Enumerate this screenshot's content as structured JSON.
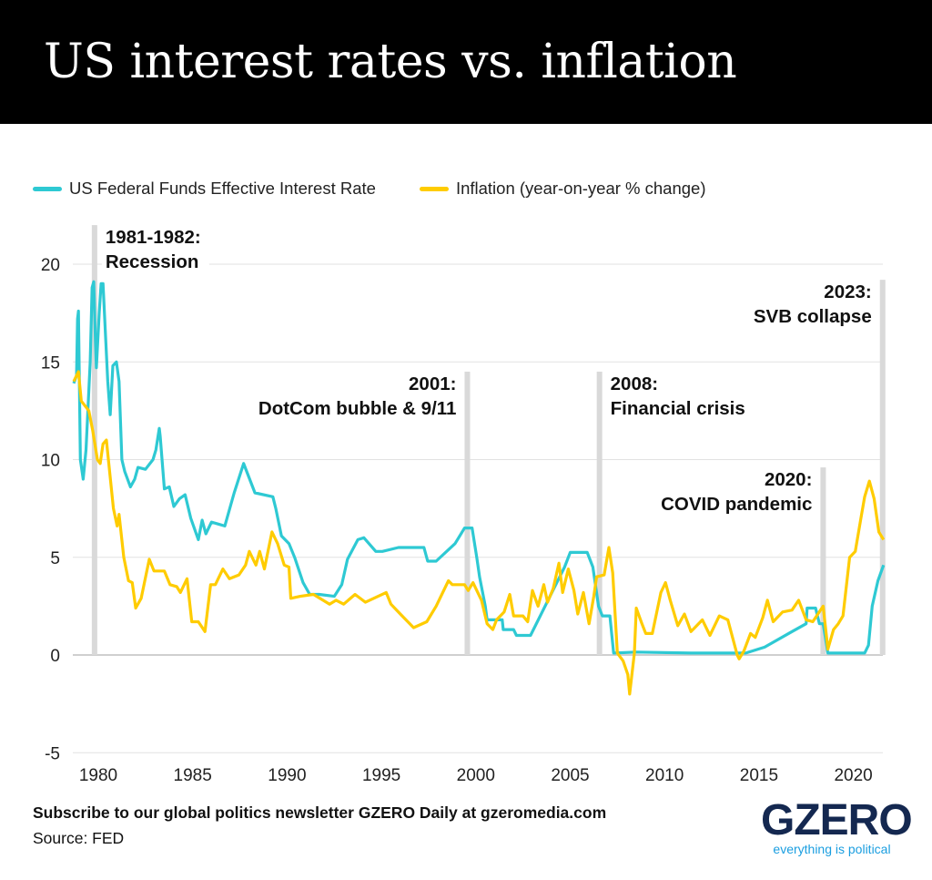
{
  "header": {
    "title": "US interest rates vs. inflation"
  },
  "footer": {
    "subscribe": "Subscribe to our global politics newsletter GZERO Daily at gzeromedia.com",
    "source": "Source: FED"
  },
  "logo": {
    "name": "GZERO",
    "tagline": "everything is political"
  },
  "chart_data": {
    "type": "line",
    "title": "",
    "xlabel": "",
    "ylabel": "",
    "xlim": [
      1978.65,
      2021.6
    ],
    "ylim": [
      -5,
      20
    ],
    "grid": true,
    "legend_position": "top-left",
    "x_ticks": [
      "1980",
      "1985",
      "1990",
      "1995",
      "2000",
      "2005",
      "2010",
      "2015",
      "2020"
    ],
    "y_ticks": [
      "-5",
      "0",
      "5",
      "10",
      "15",
      "20"
    ],
    "series": [
      {
        "name": "US Federal Funds Effective Interest Rate",
        "color": "#2ec9d3",
        "points": [
          [
            1978.7,
            13.9
          ],
          [
            1978.85,
            14.3
          ],
          [
            1978.9,
            17.2
          ],
          [
            1978.95,
            17.6
          ],
          [
            1979.05,
            10
          ],
          [
            1979.2,
            9.0
          ],
          [
            1979.35,
            10.5
          ],
          [
            1979.57,
            15
          ],
          [
            1979.67,
            18.8
          ],
          [
            1979.76,
            19.1
          ],
          [
            1979.85,
            16
          ],
          [
            1979.9,
            14.7
          ],
          [
            1980.05,
            17.5
          ],
          [
            1980.15,
            19.0
          ],
          [
            1980.25,
            19.0
          ],
          [
            1980.4,
            16
          ],
          [
            1980.5,
            14
          ],
          [
            1980.63,
            12.3
          ],
          [
            1980.77,
            14.8
          ],
          [
            1980.96,
            15
          ],
          [
            1981.1,
            14
          ],
          [
            1981.25,
            10
          ],
          [
            1981.4,
            9.4
          ],
          [
            1981.7,
            8.6
          ],
          [
            1981.93,
            9
          ],
          [
            1982.1,
            9.6
          ],
          [
            1982.5,
            9.5
          ],
          [
            1982.9,
            10
          ],
          [
            1983.05,
            10.5
          ],
          [
            1983.23,
            11.6
          ],
          [
            1983.28,
            11.2
          ],
          [
            1983.5,
            8.5
          ],
          [
            1983.76,
            8.6
          ],
          [
            1984.0,
            7.6
          ],
          [
            1984.3,
            8
          ],
          [
            1984.6,
            8.2
          ],
          [
            1984.9,
            7
          ],
          [
            1985.3,
            5.9
          ],
          [
            1985.5,
            6.9
          ],
          [
            1985.7,
            6.2
          ],
          [
            1986.0,
            6.8
          ],
          [
            1986.36,
            6.7
          ],
          [
            1986.7,
            6.6
          ],
          [
            1987.2,
            8.3
          ],
          [
            1987.7,
            9.8
          ],
          [
            1987.9,
            9.3
          ],
          [
            1988.3,
            8.3
          ],
          [
            1989.25,
            8.1
          ],
          [
            1989.4,
            7.5
          ],
          [
            1989.7,
            6.1
          ],
          [
            1990.1,
            5.7
          ],
          [
            1990.4,
            5.0
          ],
          [
            1990.85,
            3.7
          ],
          [
            1991.2,
            3.1
          ],
          [
            1991.7,
            3.1
          ],
          [
            1992.5,
            3.0
          ],
          [
            1992.9,
            3.6
          ],
          [
            1993.2,
            4.9
          ],
          [
            1993.75,
            5.9
          ],
          [
            1994.07,
            6.0
          ],
          [
            1994.7,
            5.3
          ],
          [
            1995.05,
            5.3
          ],
          [
            1995.9,
            5.5
          ],
          [
            1997.25,
            5.5
          ],
          [
            1997.45,
            4.8
          ],
          [
            1997.9,
            4.8
          ],
          [
            1998.9,
            5.7
          ],
          [
            1999.4,
            6.5
          ],
          [
            1999.8,
            6.5
          ],
          [
            2000.05,
            5
          ],
          [
            2000.2,
            4.0
          ],
          [
            2000.5,
            2.5
          ],
          [
            2000.6,
            1.8
          ],
          [
            2001.4,
            1.8
          ],
          [
            2001.45,
            1.3
          ],
          [
            2002.0,
            1.3
          ],
          [
            2002.15,
            1.0
          ],
          [
            2002.9,
            1.0
          ],
          [
            2004.7,
            4.5
          ],
          [
            2005.0,
            5.25
          ],
          [
            2005.9,
            5.25
          ],
          [
            2006.2,
            4.5
          ],
          [
            2006.5,
            2.5
          ],
          [
            2006.7,
            2.0
          ],
          [
            2007.1,
            2.0
          ],
          [
            2007.3,
            0.1
          ],
          [
            2008.5,
            0.15
          ],
          [
            2011.4,
            0.1
          ],
          [
            2014.3,
            0.1
          ],
          [
            2015.3,
            0.4
          ],
          [
            2016.75,
            1.2
          ],
          [
            2017.5,
            1.6
          ],
          [
            2017.55,
            2.4
          ],
          [
            2018.0,
            2.4
          ],
          [
            2018.2,
            1.6
          ],
          [
            2018.4,
            1.6
          ],
          [
            2018.65,
            0.1
          ],
          [
            2020.6,
            0.1
          ],
          [
            2020.8,
            0.5
          ],
          [
            2021.0,
            2.5
          ],
          [
            2021.3,
            3.8
          ],
          [
            2021.6,
            4.6
          ]
        ]
      },
      {
        "name": "Inflation (year-on-year % change)",
        "color": "#ffcc00",
        "points": [
          [
            1978.7,
            14
          ],
          [
            1978.95,
            14.5
          ],
          [
            1979.1,
            13
          ],
          [
            1979.5,
            12.5
          ],
          [
            1979.7,
            11.5
          ],
          [
            1979.95,
            10
          ],
          [
            1980.1,
            9.8
          ],
          [
            1980.25,
            10.8
          ],
          [
            1980.43,
            11
          ],
          [
            1980.8,
            7.5
          ],
          [
            1981.0,
            6.6
          ],
          [
            1981.1,
            7.2
          ],
          [
            1981.35,
            5
          ],
          [
            1981.6,
            3.8
          ],
          [
            1981.8,
            3.7
          ],
          [
            1981.98,
            2.4
          ],
          [
            1982.27,
            2.9
          ],
          [
            1982.7,
            4.9
          ],
          [
            1982.95,
            4.3
          ],
          [
            1983.5,
            4.3
          ],
          [
            1983.8,
            3.6
          ],
          [
            1984.15,
            3.5
          ],
          [
            1984.35,
            3.2
          ],
          [
            1984.7,
            3.9
          ],
          [
            1984.95,
            1.7
          ],
          [
            1985.3,
            1.7
          ],
          [
            1985.65,
            1.2
          ],
          [
            1985.95,
            3.6
          ],
          [
            1986.2,
            3.6
          ],
          [
            1986.6,
            4.4
          ],
          [
            1986.95,
            3.9
          ],
          [
            1987.45,
            4.1
          ],
          [
            1987.8,
            4.6
          ],
          [
            1988.0,
            5.3
          ],
          [
            1988.35,
            4.6
          ],
          [
            1988.55,
            5.3
          ],
          [
            1988.8,
            4.4
          ],
          [
            1989.2,
            6.3
          ],
          [
            1989.5,
            5.7
          ],
          [
            1989.85,
            4.6
          ],
          [
            1990.1,
            4.5
          ],
          [
            1990.2,
            2.9
          ],
          [
            1990.7,
            3.0
          ],
          [
            1991.4,
            3.1
          ],
          [
            1992.25,
            2.6
          ],
          [
            1992.6,
            2.8
          ],
          [
            1993.0,
            2.6
          ],
          [
            1993.6,
            3.1
          ],
          [
            1994.15,
            2.7
          ],
          [
            1995.25,
            3.2
          ],
          [
            1995.5,
            2.6
          ],
          [
            1996.0,
            2.1
          ],
          [
            1996.7,
            1.4
          ],
          [
            1997.4,
            1.7
          ],
          [
            1997.9,
            2.5
          ],
          [
            1998.55,
            3.8
          ],
          [
            1998.75,
            3.6
          ],
          [
            1999.4,
            3.6
          ],
          [
            1999.6,
            3.3
          ],
          [
            1999.85,
            3.7
          ],
          [
            2000.3,
            2.8
          ],
          [
            2000.6,
            1.6
          ],
          [
            2000.9,
            1.3
          ],
          [
            2001.1,
            1.8
          ],
          [
            2001.5,
            2.2
          ],
          [
            2001.8,
            3.1
          ],
          [
            2002.0,
            2.0
          ],
          [
            2002.5,
            2.0
          ],
          [
            2002.75,
            1.7
          ],
          [
            2003.0,
            3.3
          ],
          [
            2003.3,
            2.5
          ],
          [
            2003.6,
            3.6
          ],
          [
            2003.8,
            2.7
          ],
          [
            2004.1,
            3.4
          ],
          [
            2004.4,
            4.7
          ],
          [
            2004.6,
            3.2
          ],
          [
            2004.9,
            4.4
          ],
          [
            2005.2,
            3.3
          ],
          [
            2005.4,
            2.1
          ],
          [
            2005.7,
            3.2
          ],
          [
            2006.0,
            1.6
          ],
          [
            2006.25,
            3.0
          ],
          [
            2006.4,
            4.0
          ],
          [
            2006.8,
            4.1
          ],
          [
            2007.05,
            5.5
          ],
          [
            2007.25,
            4.2
          ],
          [
            2007.5,
            0.1
          ],
          [
            2007.8,
            -0.3
          ],
          [
            2008.05,
            -1.0
          ],
          [
            2008.15,
            -2.0
          ],
          [
            2008.4,
            0.1
          ],
          [
            2008.5,
            2.4
          ],
          [
            2008.8,
            1.6
          ],
          [
            2009.0,
            1.1
          ],
          [
            2009.35,
            1.1
          ],
          [
            2009.8,
            3.2
          ],
          [
            2010.05,
            3.7
          ],
          [
            2010.3,
            2.8
          ],
          [
            2010.7,
            1.5
          ],
          [
            2011.05,
            2.1
          ],
          [
            2011.4,
            1.2
          ],
          [
            2012.0,
            1.8
          ],
          [
            2012.4,
            1.0
          ],
          [
            2012.9,
            2.0
          ],
          [
            2013.35,
            1.8
          ],
          [
            2013.85,
            0.0
          ],
          [
            2013.95,
            -0.2
          ],
          [
            2014.2,
            0.2
          ],
          [
            2014.55,
            1.1
          ],
          [
            2014.8,
            0.9
          ],
          [
            2015.2,
            1.9
          ],
          [
            2015.45,
            2.8
          ],
          [
            2015.75,
            1.7
          ],
          [
            2016.25,
            2.2
          ],
          [
            2016.75,
            2.3
          ],
          [
            2017.1,
            2.8
          ],
          [
            2017.5,
            1.8
          ],
          [
            2017.85,
            1.7
          ],
          [
            2018.4,
            2.5
          ],
          [
            2018.65,
            0.3
          ],
          [
            2018.95,
            1.3
          ],
          [
            2019.2,
            1.6
          ],
          [
            2019.45,
            2.0
          ],
          [
            2019.8,
            5.0
          ],
          [
            2020.1,
            5.3
          ],
          [
            2020.4,
            7.0
          ],
          [
            2020.6,
            8.1
          ],
          [
            2020.85,
            8.9
          ],
          [
            2021.1,
            8.0
          ],
          [
            2021.35,
            6.3
          ],
          [
            2021.6,
            5.9
          ]
        ]
      }
    ],
    "annotations": [
      {
        "x": 1979.8,
        "top": 22,
        "line1": "1981-1982:",
        "line2": "Recession",
        "align": "left"
      },
      {
        "x": 1999.55,
        "top": 14.5,
        "line1": "2001:",
        "line2": "DotCom bubble & 9/11",
        "align": "right"
      },
      {
        "x": 2006.55,
        "top": 14.5,
        "line1": "2008:",
        "line2": "Financial crisis",
        "align": "left"
      },
      {
        "x": 2018.4,
        "top": 9.6,
        "line1": "2020:",
        "line2": "COVID pandemic",
        "align": "right"
      },
      {
        "x": 2021.55,
        "top": 19.2,
        "line1": "2023:",
        "line2": "SVB collapse",
        "align": "right"
      }
    ]
  }
}
